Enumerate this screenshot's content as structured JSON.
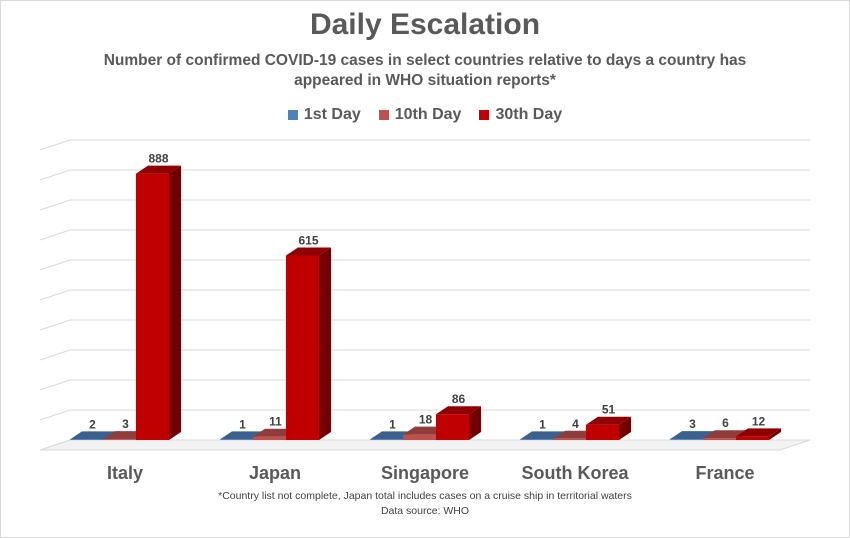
{
  "chart_data": {
    "type": "bar",
    "title": "Daily Escalation",
    "subtitle": "Number of confirmed COVID-19 cases in select countries relative to days a country has appeared in WHO situation reports*",
    "categories": [
      "Italy",
      "Japan",
      "Singapore",
      "South Korea",
      "France"
    ],
    "series": [
      {
        "name": "1st Day",
        "values": [
          2,
          1,
          1,
          1,
          3
        ]
      },
      {
        "name": "10th Day",
        "values": [
          3,
          11,
          18,
          4,
          6
        ]
      },
      {
        "name": "30th Day",
        "values": [
          888,
          615,
          86,
          51,
          12
        ]
      }
    ],
    "ylim": [
      0,
      1000
    ],
    "grid": true,
    "legend_position": "top",
    "three_d": true,
    "footnote": "*Country list not complete, Japan total includes cases on a cruise ship in territorial waters",
    "source": "Data source: WHO"
  },
  "colors": {
    "series": [
      "#4f81bd",
      "#c0504d",
      "#c00000"
    ],
    "text": "#595959",
    "grid": "#d9d9d9"
  }
}
